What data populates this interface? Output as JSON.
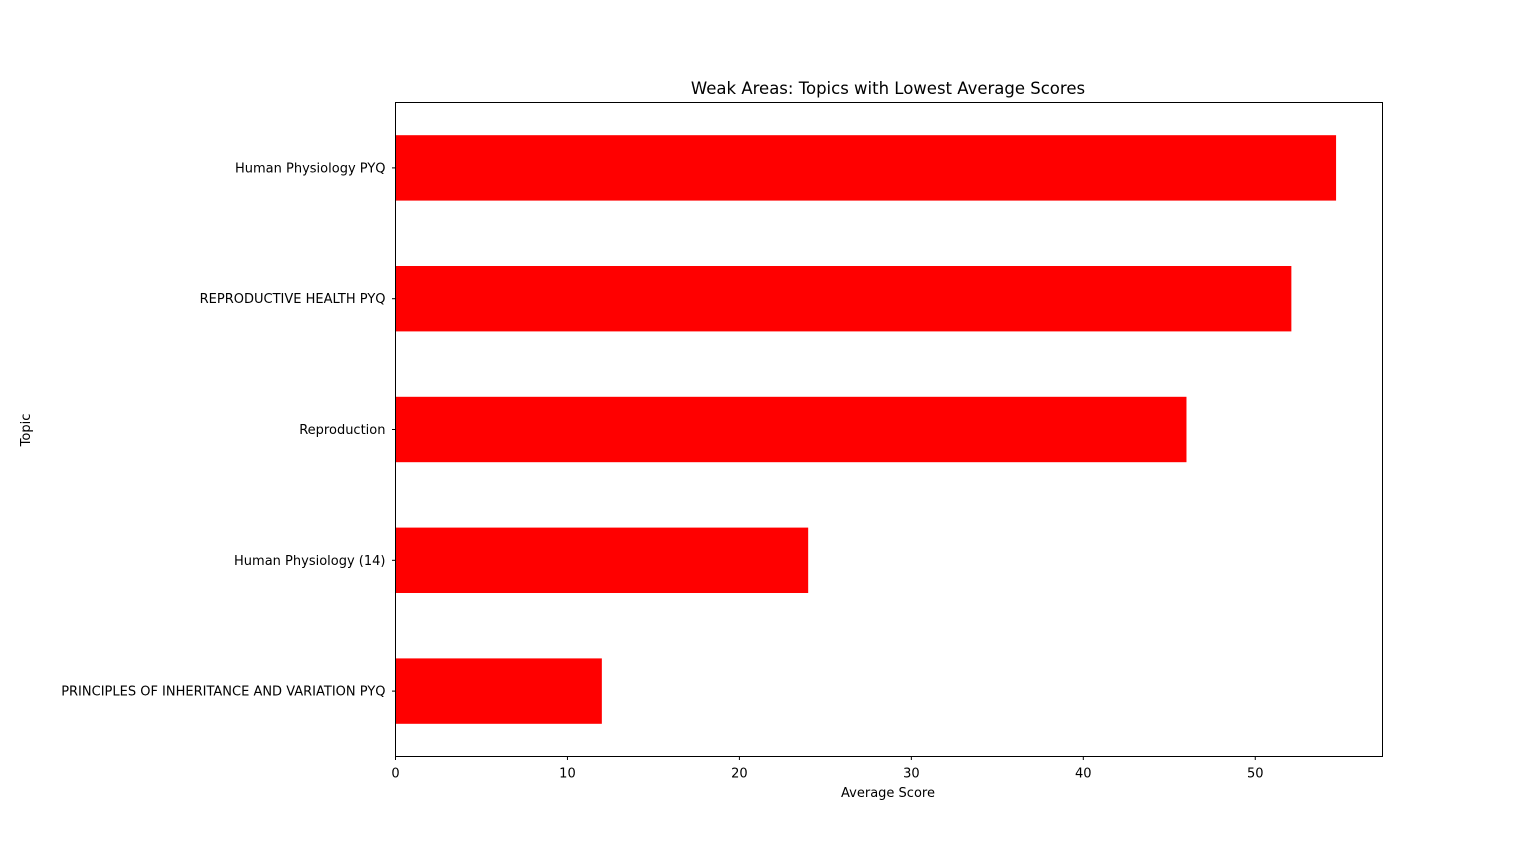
{
  "chart_data": {
    "type": "bar",
    "orientation": "horizontal",
    "title": "Weak Areas: Topics with Lowest Average Scores",
    "xlabel": "Average Score",
    "ylabel": "Topic",
    "categories": [
      "PRINCIPLES OF INHERITANCE AND VARIATION PYQ",
      "Human Physiology (14)",
      "Reproduction",
      "REPRODUCTIVE HEALTH PYQ",
      "Human Physiology PYQ"
    ],
    "values": [
      12,
      24,
      46,
      52.1,
      54.7
    ],
    "bar_color": "#ff0000",
    "xlim": [
      0,
      57.4
    ],
    "xticks": [
      0,
      10,
      20,
      30,
      40,
      50
    ],
    "grid": false,
    "legend": "none"
  }
}
